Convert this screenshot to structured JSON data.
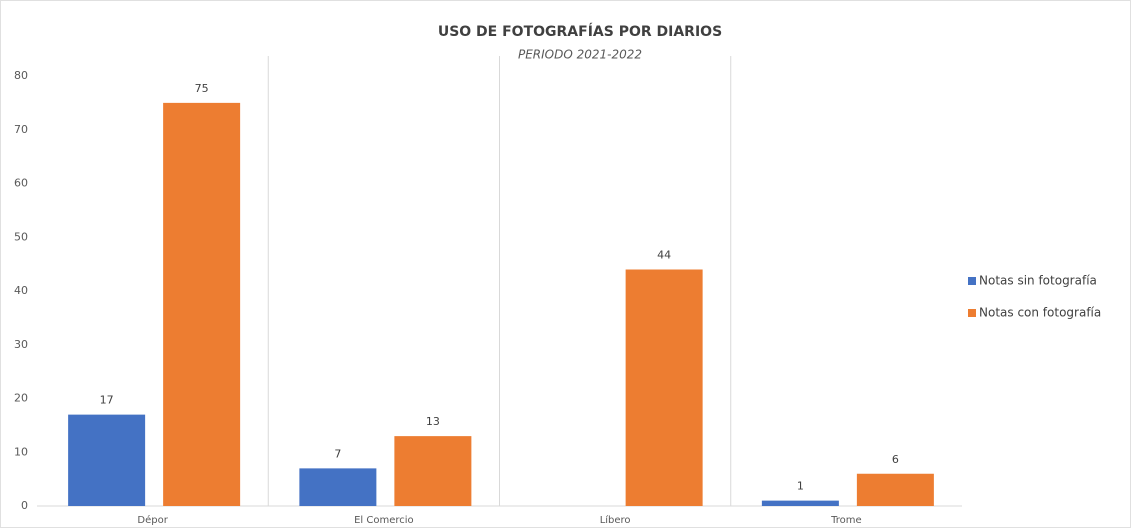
{
  "chart_data": {
    "type": "bar",
    "title": "USO DE FOTOGRAFÍAS POR DIARIOS",
    "subtitle": "PERIODO 2021-2022",
    "categories": [
      "Dépor",
      "El Comercio",
      "Líbero",
      "Trome"
    ],
    "series": [
      {
        "name": "Notas sin fotografía",
        "color": "#4472c4",
        "values": [
          17,
          7,
          null,
          1
        ]
      },
      {
        "name": "Notas con fotografía",
        "color": "#ed7d31",
        "values": [
          75,
          13,
          44,
          6
        ]
      }
    ],
    "ylim": [
      0,
      80
    ],
    "yticks": [
      0,
      10,
      20,
      30,
      40,
      50,
      60,
      70,
      80
    ],
    "legend": "right"
  }
}
